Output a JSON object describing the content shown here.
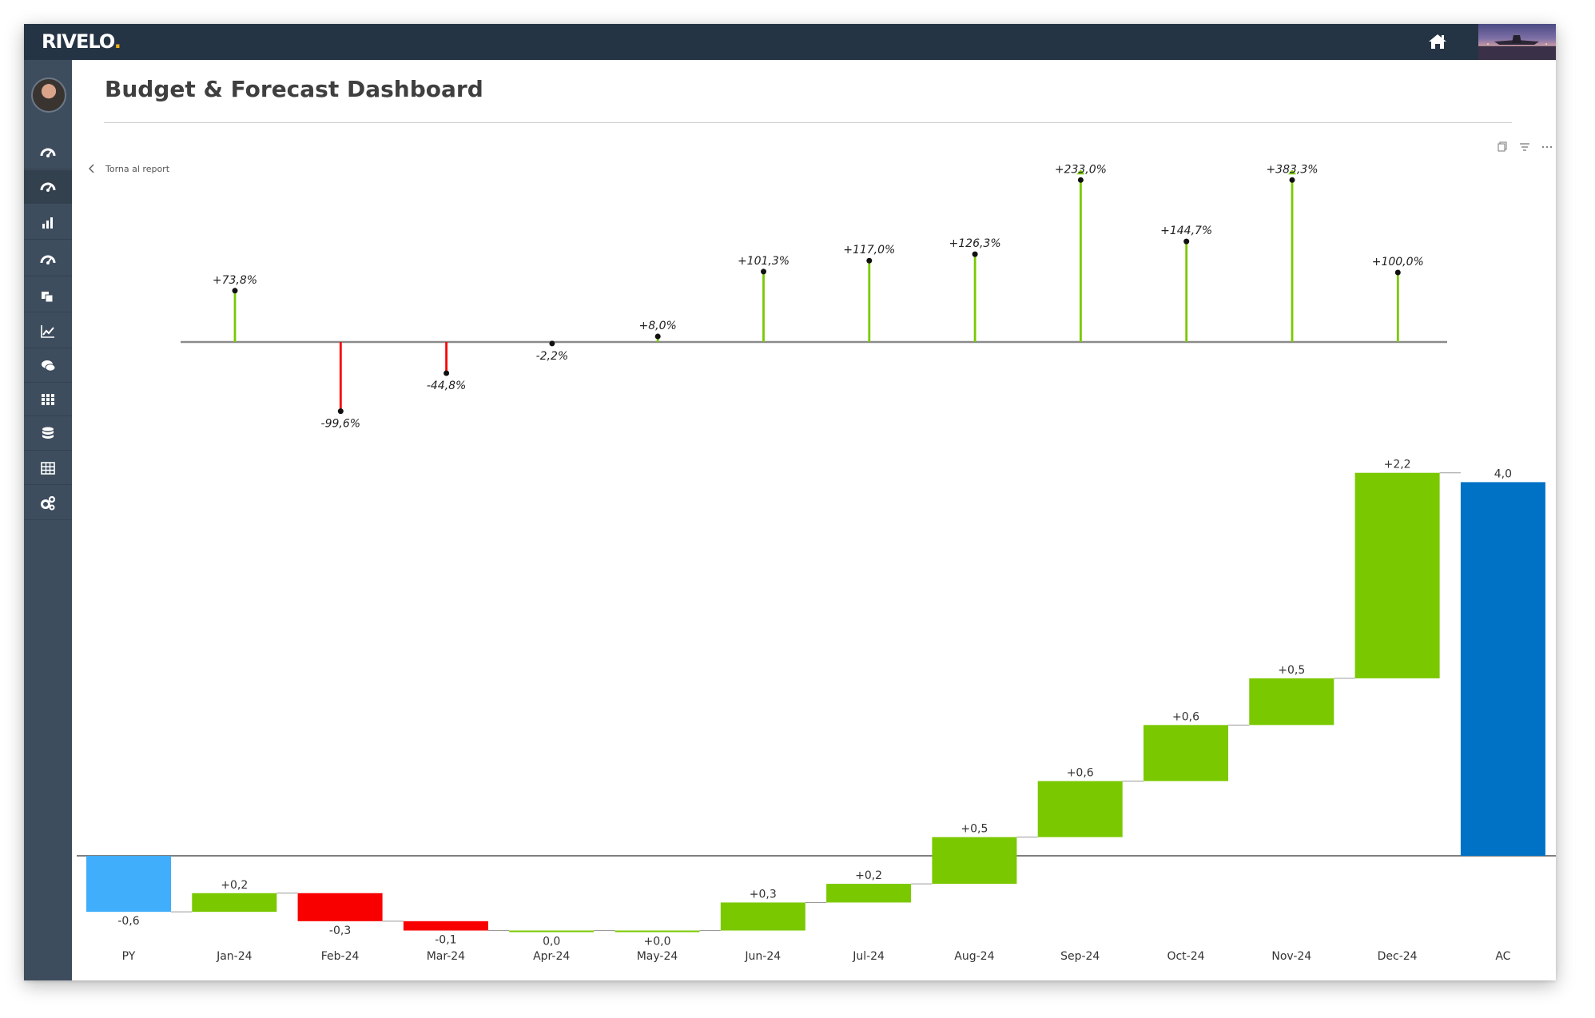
{
  "app": {
    "logo": "RIVELO",
    "logo_dot": ".",
    "title": "Budget & Forecast Dashboard",
    "back_label": "Torna al report"
  },
  "icons": {
    "home": "home-icon",
    "copy": "copy-icon",
    "filter": "filter-icon",
    "more": "more-options-icon"
  },
  "sidebar": {
    "items": [
      {
        "icon": "dashboard-icon"
      },
      {
        "icon": "dashboard-icon",
        "active": true
      },
      {
        "icon": "bar-chart-icon"
      },
      {
        "icon": "dashboard-icon"
      },
      {
        "icon": "layers-icon"
      },
      {
        "icon": "line-chart-icon"
      },
      {
        "icon": "comments-icon"
      },
      {
        "icon": "grid-icon"
      },
      {
        "icon": "database-icon"
      },
      {
        "icon": "table-icon"
      },
      {
        "icon": "settings-icon"
      }
    ]
  },
  "colors": {
    "positive": "#7ac800",
    "negative": "#f90000",
    "py": "#40aefa",
    "ac": "#0072c6",
    "topbar": "#253445",
    "sidebar": "#3e4d5e"
  },
  "chart_data": [
    {
      "type": "bar",
      "subtype": "pin",
      "categories": [
        "Jan-24",
        "Feb-24",
        "Mar-24",
        "Apr-24",
        "May-24",
        "Jun-24",
        "Jul-24",
        "Aug-24",
        "Sep-24",
        "Oct-24",
        "Nov-24",
        "Dec-24"
      ],
      "values": [
        73.8,
        -99.6,
        -44.8,
        -2.2,
        8.0,
        101.3,
        117.0,
        126.3,
        233.0,
        144.7,
        383.3,
        100.0
      ],
      "labels": [
        "+73,8%",
        "-99,6%",
        "-44,8%",
        "-2,2%",
        "+8,0%",
        "+101,3%",
        "+117,0%",
        "+126,3%",
        "+233,0%",
        "+144,7%",
        "+383,3%",
        "+100,0%"
      ],
      "truncated": [
        false,
        false,
        false,
        false,
        false,
        false,
        false,
        false,
        true,
        false,
        true,
        false
      ]
    },
    {
      "type": "bar",
      "subtype": "waterfall",
      "categories": [
        "PY",
        "Jan-24",
        "Feb-24",
        "Mar-24",
        "Apr-24",
        "May-24",
        "Jun-24",
        "Jul-24",
        "Aug-24",
        "Sep-24",
        "Oct-24",
        "Nov-24",
        "Dec-24",
        "AC"
      ],
      "values": [
        -0.6,
        0.2,
        -0.3,
        -0.1,
        0.0,
        0.0,
        0.3,
        0.2,
        0.5,
        0.6,
        0.6,
        0.5,
        2.2,
        4.0
      ],
      "labels": [
        "-0,6",
        "+0,2",
        "-0,3",
        "-0,1",
        "0,0",
        "+0,0",
        "+0,3",
        "+0,2",
        "+0,5",
        "+0,6",
        "+0,6",
        "+0,5",
        "+2,2",
        "4,0"
      ],
      "kinds": [
        "py",
        "delta",
        "delta",
        "delta",
        "delta",
        "delta",
        "delta",
        "delta",
        "delta",
        "delta",
        "delta",
        "delta",
        "delta",
        "ac"
      ]
    }
  ]
}
